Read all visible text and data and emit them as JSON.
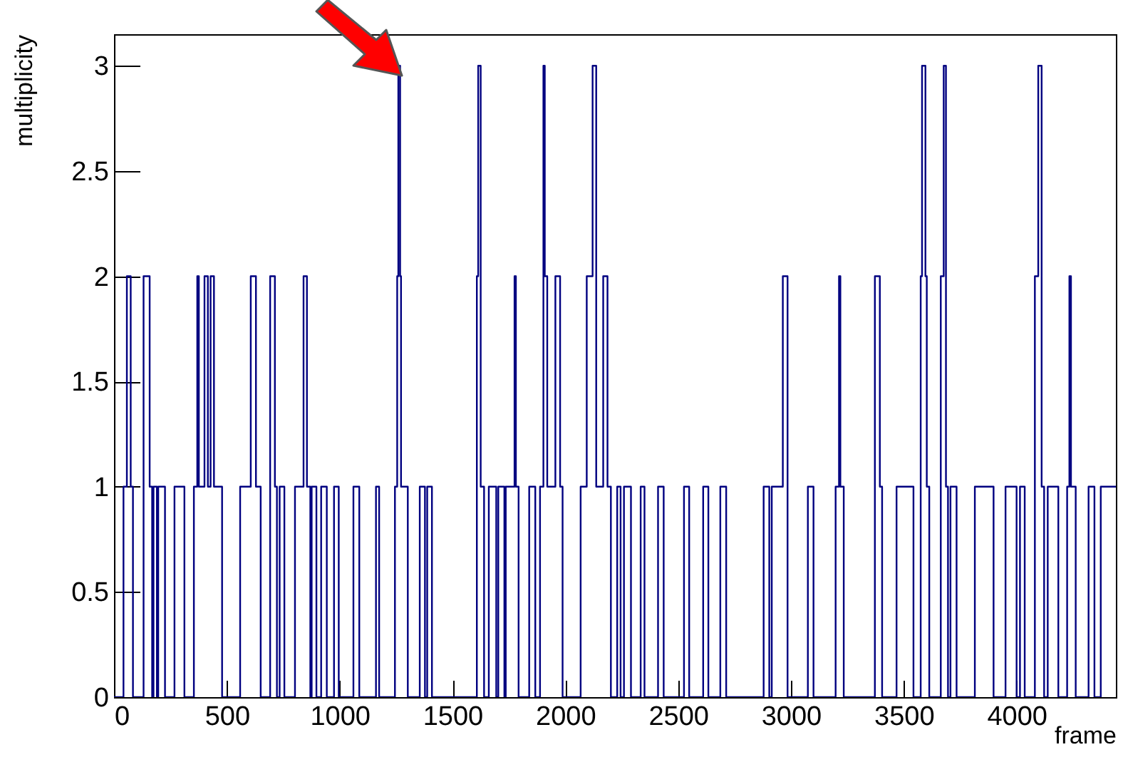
{
  "chart_data": {
    "type": "step",
    "xlabel": "frame",
    "ylabel": "multiplicity",
    "x": [
      0,
      42,
      57,
      74,
      84,
      131,
      158,
      169,
      175,
      190,
      196,
      226,
      268,
      312,
      354,
      369,
      376,
      401,
      416,
      428,
      443,
      479,
      559,
      606,
      629,
      650,
      692,
      713,
      722,
      734,
      755,
      802,
      840,
      855,
      870,
      876,
      897,
      918,
      943,
      975,
      996,
      1061,
      1087,
      1161,
      1175,
      1245,
      1255,
      1260,
      1268,
      1272,
      1302,
      1355,
      1378,
      1388,
      1409,
      1608,
      1614,
      1625,
      1640,
      1661,
      1694,
      1703,
      1730,
      1736,
      1775,
      1781,
      1793,
      1840,
      1867,
      1888,
      1903,
      1909,
      1920,
      1956,
      1977,
      1988,
      2068,
      2095,
      2121,
      2137,
      2168,
      2187,
      2202,
      2230,
      2245,
      2260,
      2291,
      2334,
      2351,
      2411,
      2436,
      2526,
      2549,
      2611,
      2634,
      2687,
      2713,
      2879,
      2904,
      2915,
      2964,
      2985,
      3075,
      3100,
      3198,
      3213,
      3219,
      3234,
      3372,
      3394,
      3404,
      3468,
      3543,
      3575,
      3581,
      3596,
      3602,
      3613,
      3664,
      3677,
      3687,
      3696,
      3707,
      3734,
      3815,
      3898,
      3951,
      4000,
      4015,
      4036,
      4081,
      4096,
      4111,
      4122,
      4138,
      4185,
      4224,
      4234,
      4241,
      4262,
      4319,
      4345,
      4373,
      4440
    ],
    "series": [
      {
        "color": "#000080",
        "values": [
          0,
          1,
          2,
          1,
          0,
          2,
          1,
          0,
          1,
          0,
          1,
          0,
          1,
          0,
          1,
          2,
          1,
          2,
          1,
          2,
          1,
          0,
          1,
          2,
          1,
          0,
          2,
          1,
          0,
          1,
          0,
          1,
          2,
          1,
          0,
          1,
          0,
          1,
          0,
          1,
          0,
          1,
          0,
          1,
          0,
          1,
          2,
          3,
          2,
          1,
          0,
          1,
          0,
          1,
          0,
          2,
          3,
          1,
          0,
          1,
          0,
          1,
          0,
          1,
          2,
          1,
          0,
          1,
          0,
          1,
          3,
          2,
          1,
          2,
          1,
          0,
          1,
          2,
          3,
          1,
          2,
          1,
          0,
          1,
          0,
          1,
          0,
          1,
          0,
          1,
          0,
          1,
          0,
          1,
          0,
          1,
          0,
          1,
          0,
          1,
          2,
          0,
          1,
          0,
          1,
          2,
          1,
          0,
          2,
          1,
          0,
          1,
          0,
          2,
          3,
          2,
          1,
          0,
          2,
          3,
          1,
          0,
          1,
          0,
          1,
          0,
          1,
          0,
          1,
          0,
          2,
          3,
          1,
          0,
          1,
          0,
          1,
          2,
          1,
          0,
          1,
          0,
          1,
          1
        ]
      }
    ],
    "xlim": [
      0,
      4440
    ],
    "xticks": [
      0,
      500,
      1000,
      1500,
      2000,
      2500,
      3000,
      3500,
      4000
    ],
    "ylim": [
      0,
      3.15
    ],
    "yticks": [
      0,
      0.5,
      1,
      1.5,
      2,
      2.5,
      3
    ],
    "grid": false,
    "line_style": "solid"
  }
}
